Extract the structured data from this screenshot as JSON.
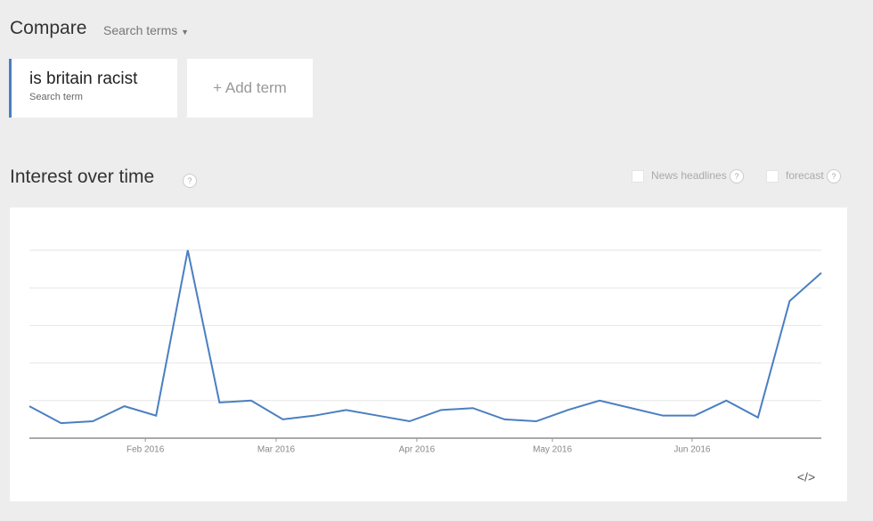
{
  "header": {
    "title": "Compare",
    "dropdown": "Search terms"
  },
  "terms": [
    {
      "label": "is britain racist",
      "sublabel": "Search term"
    }
  ],
  "add_term": "+ Add term",
  "section": {
    "title": "Interest over time",
    "help": "?",
    "options": [
      {
        "label": "News headlines",
        "help": "?"
      },
      {
        "label": "forecast",
        "help": "?"
      }
    ],
    "embed": "</>"
  },
  "chart_data": {
    "type": "line",
    "categories": [
      null,
      null,
      null,
      null,
      null,
      null,
      null,
      null,
      null,
      null,
      null,
      null,
      null,
      null,
      null,
      null,
      null,
      null,
      null,
      null,
      null,
      null,
      null,
      null,
      null,
      null
    ],
    "series": [
      {
        "name": "is britain racist",
        "color": "#4a7fc1",
        "values": [
          17,
          8,
          9,
          17,
          12,
          100,
          19,
          20,
          10,
          12,
          15,
          12,
          9,
          15,
          16,
          10,
          9,
          15,
          20,
          16,
          12,
          12,
          20,
          11,
          73,
          88
        ]
      }
    ],
    "ylim": [
      0,
      100
    ],
    "yticks": [
      0,
      20,
      40,
      60,
      80,
      100
    ],
    "grid": true,
    "xlim": [
      0,
      25
    ],
    "xticks": [
      {
        "value": 3.66,
        "label": "Feb 2016"
      },
      {
        "value": 7.79,
        "label": "Mar 2016"
      },
      {
        "value": 12.23,
        "label": "Apr 2016"
      },
      {
        "value": 16.51,
        "label": "May 2016"
      },
      {
        "value": 20.92,
        "label": "Jun 2016"
      }
    ]
  }
}
